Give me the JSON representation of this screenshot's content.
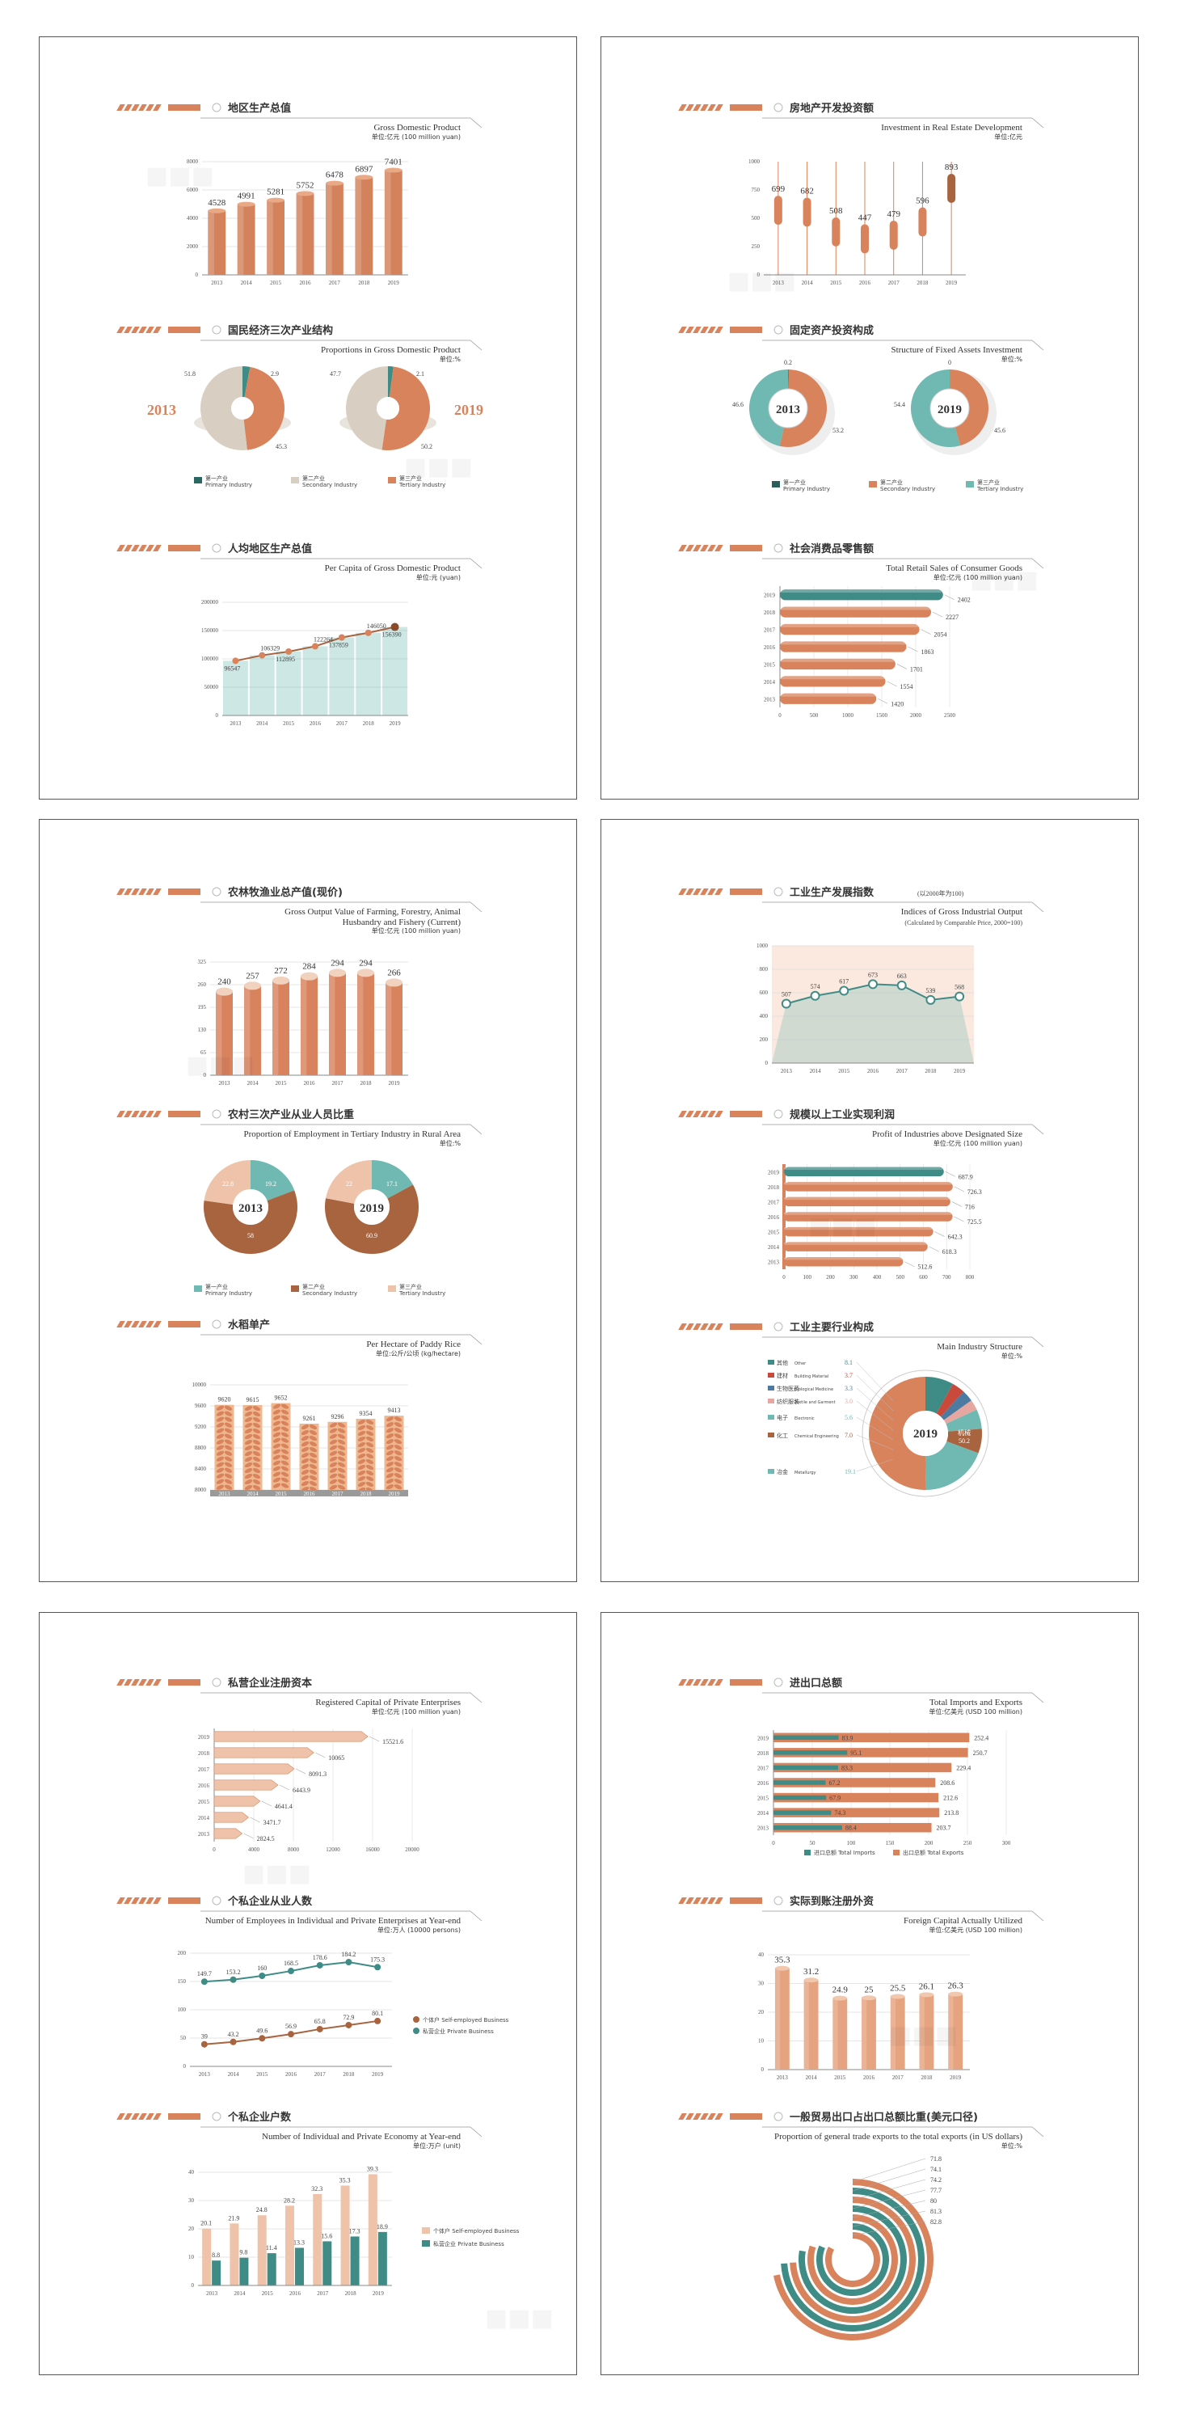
{
  "colors": {
    "accent": "#d9835c",
    "accent_light": "#eec3a9",
    "teal": "#3f8b86",
    "teal_light": "#6fb9b2",
    "dark_teal": "#2a6763",
    "beige": "#d8cfc2",
    "brown": "#a8633f"
  },
  "charts": [
    {
      "key": "gdp",
      "title_cn": "地区生产总值",
      "title_en": "Gross Domestic Product",
      "unit": "单位:亿元 (100 million yuan)",
      "chart_data": {
        "type": "bar",
        "categories": [
          "2013",
          "2014",
          "2015",
          "2016",
          "2017",
          "2018",
          "2019"
        ],
        "values": [
          4528,
          4991,
          5281,
          5752,
          6478,
          6897,
          7401
        ],
        "ylim": [
          0,
          8000
        ],
        "yticks": [
          "0",
          "2000",
          "4000",
          "6000",
          "8000"
        ]
      }
    },
    {
      "key": "realestate",
      "title_cn": "房地产开发投资额",
      "title_en": "Investment in Real Estate Development",
      "unit": "单位:亿元",
      "chart_data": {
        "type": "bar",
        "categories": [
          "2013",
          "2014",
          "2015",
          "2016",
          "2017",
          "2018",
          "2019"
        ],
        "values": [
          699,
          682,
          508,
          447,
          479,
          596,
          893
        ],
        "ylim": [
          0,
          1000
        ],
        "yticks": [
          "0",
          "250",
          "500",
          "750",
          "1000"
        ]
      }
    },
    {
      "key": "gdpstructure",
      "title_cn": "国民经济三次产业结构",
      "title_en": "Proportions in Gross Domestic Product",
      "unit": "单位:%",
      "chart_data": {
        "type": "pie",
        "charts": [
          {
            "year": "2013",
            "values": [
              2.9,
              45.3,
              51.8
            ]
          },
          {
            "year": "2019",
            "values": [
              2.1,
              50.2,
              47.7
            ]
          }
        ],
        "legend": [
          {
            "cn": "第一产业",
            "en": "Primary Industry"
          },
          {
            "cn": "第二产业",
            "en": "Secondary Industry"
          },
          {
            "cn": "第三产业",
            "en": "Tertiary Industry"
          }
        ]
      }
    },
    {
      "key": "fixedassets",
      "title_cn": "固定资产投资构成",
      "title_en": "Structure of Fixed Assets Investment",
      "unit": "单位:%",
      "chart_data": {
        "type": "pie",
        "charts": [
          {
            "year": "2013",
            "values": [
              0.2,
              53.2,
              46.6
            ]
          },
          {
            "year": "2019",
            "values": [
              0.0,
              45.6,
              54.4
            ]
          }
        ],
        "legend": [
          {
            "cn": "第一产业",
            "en": "Primary Industry"
          },
          {
            "cn": "第二产业",
            "en": "Secondary Industry"
          },
          {
            "cn": "第三产业",
            "en": "Tertiary Industry"
          }
        ]
      }
    },
    {
      "key": "percapita",
      "title_cn": "人均地区生产总值",
      "title_en": "Per Capita of Gross Domestic Product",
      "unit": "单位:元 (yuan)",
      "chart_data": {
        "type": "line",
        "categories": [
          "2013",
          "2014",
          "2015",
          "2016",
          "2017",
          "2018",
          "2019"
        ],
        "values": [
          96547,
          106329,
          112895,
          122264,
          137859,
          146050,
          156390
        ],
        "ylim": [
          0,
          200000
        ],
        "yticks": [
          "0",
          "50000",
          "100000",
          "150000",
          "200000"
        ]
      }
    },
    {
      "key": "retail",
      "title_cn": "社会消费品零售额",
      "title_en": "Total Retail Sales of Consumer Goods",
      "unit": "单位:亿元 (100 million yuan)",
      "chart_data": {
        "type": "bar",
        "categories": [
          "2019",
          "2018",
          "2017",
          "2016",
          "2015",
          "2014",
          "2013"
        ],
        "values": [
          2402,
          2227,
          2054,
          1863,
          1701,
          1554,
          1420
        ],
        "xlim": [
          0,
          2500
        ],
        "xticks": [
          "0",
          "500",
          "1000",
          "1500",
          "2000",
          "2500"
        ]
      }
    },
    {
      "key": "farming",
      "title_cn": "农林牧渔业总产值(现价)",
      "title_en": "Gross Output Value of Farming, Forestry, Animal",
      "title_en2": "Husbandry and Fishery (Current)",
      "unit": "单位:亿元 (100 million yuan)",
      "chart_data": {
        "type": "bar",
        "categories": [
          "2013",
          "2014",
          "2015",
          "2016",
          "2017",
          "2018",
          "2019"
        ],
        "values": [
          240,
          257,
          272,
          284,
          294,
          294,
          266
        ],
        "ylim": [
          0,
          325
        ],
        "yticks": [
          "0",
          "65",
          "130",
          "195",
          "260",
          "325"
        ]
      }
    },
    {
      "key": "industrial",
      "title_cn": "工业生产发展指数",
      "title_cn_note": "(以2000年为100)",
      "title_en": "Indices of Gross Industrial Output",
      "title_en2": "(Calculated by Comparable Price, 2000=100)",
      "chart_data": {
        "type": "line",
        "categories": [
          "2013",
          "2014",
          "2015",
          "2016",
          "2017",
          "2018",
          "2019"
        ],
        "values": [
          507,
          574,
          617,
          673,
          663,
          539,
          568
        ],
        "ylim": [
          0,
          1000
        ],
        "yticks": [
          "0",
          "200",
          "400",
          "600",
          "800",
          "1000"
        ]
      }
    },
    {
      "key": "ruralemp",
      "title_cn": "农村三次产业从业人员比重",
      "title_en": "Proportion of Employment in Tertiary Industry in Rural Area",
      "unit": "单位:%",
      "chart_data": {
        "type": "pie",
        "charts": [
          {
            "year": "2013",
            "values": [
              19.2,
              58.0,
              22.8
            ]
          },
          {
            "year": "2019",
            "values": [
              17.1,
              60.9,
              22.0
            ]
          }
        ],
        "legend": [
          {
            "cn": "第一产业",
            "en": "Primary Industry"
          },
          {
            "cn": "第二产业",
            "en": "Secondary Industry"
          },
          {
            "cn": "第三产业",
            "en": "Tertiary Industry"
          }
        ]
      }
    },
    {
      "key": "profit",
      "title_cn": "规模以上工业实现利润",
      "title_en": "Profit of Industries above Designated Size",
      "unit": "单位:亿元 (100 million yuan)",
      "chart_data": {
        "type": "bar",
        "categories": [
          "2019",
          "2018",
          "2017",
          "2016",
          "2015",
          "2014",
          "2013"
        ],
        "values": [
          687.9,
          726.3,
          716.0,
          725.5,
          642.3,
          618.3,
          512.6
        ],
        "xlim": [
          0,
          800
        ],
        "xticks": [
          "0",
          "100",
          "200",
          "300",
          "400",
          "500",
          "600",
          "700",
          "800"
        ]
      }
    },
    {
      "key": "rice",
      "title_cn": "水稻单产",
      "title_en": "Per Hectare of Paddy Rice",
      "unit": "单位:公斤/公顷 (kg/hectare)",
      "chart_data": {
        "type": "bar",
        "categories": [
          "2013",
          "2014",
          "2015",
          "2016",
          "2017",
          "2018",
          "2019"
        ],
        "values": [
          9620,
          9615,
          9652,
          9261,
          9296,
          9354,
          9413
        ],
        "ylim": [
          8000,
          10000
        ],
        "yticks": [
          "8000",
          "8400",
          "8800",
          "9200",
          "9600",
          "10000"
        ]
      }
    },
    {
      "key": "industrystructure",
      "title_cn": "工业主要行业构成",
      "title_en": "Main Industry Structure",
      "unit": "单位:%",
      "chart_data": {
        "type": "pie",
        "year": "2019",
        "center_label": "机械",
        "labels": [
          {
            "cn": "其他",
            "en": "Other",
            "value": "8.1"
          },
          {
            "cn": "建材",
            "en": "Building Material",
            "value": "3.7"
          },
          {
            "cn": "生物医药",
            "en": "Biological Medicine",
            "value": "3.3"
          },
          {
            "cn": "纺织服装",
            "en": "Textile and Garment",
            "value": "3.0"
          },
          {
            "cn": "电子",
            "en": "Electronic",
            "value": "5.6"
          },
          {
            "cn": "化工",
            "en": "Chemical Engineering",
            "value": "7.0"
          },
          {
            "cn": "冶金",
            "en": "Metallurgy",
            "value": "19.1"
          },
          {
            "cn": "机械",
            "en": "Machinery",
            "value": "50.2"
          }
        ],
        "values": [
          8.1,
          3.7,
          3.3,
          3.0,
          5.6,
          7.0,
          19.1,
          50.2
        ]
      }
    },
    {
      "key": "privatecap",
      "title_cn": "私营企业注册资本",
      "title_en": "Registered Capital of Private Enterprises",
      "unit": "单位:亿元 (100 million yuan)",
      "chart_data": {
        "type": "bar",
        "categories": [
          "2019",
          "2018",
          "2017",
          "2016",
          "2015",
          "2014",
          "2013"
        ],
        "values": [
          15521.6,
          10065.0,
          8091.3,
          6443.9,
          4641.4,
          3471.7,
          2824.5
        ],
        "xlim": [
          0,
          20000
        ],
        "xticks": [
          "0",
          "4000",
          "8000",
          "12000",
          "16000",
          "20000"
        ]
      }
    },
    {
      "key": "trade",
      "title_cn": "进出口总额",
      "title_en": "Total Imports and Exports",
      "unit": "单位:亿美元 (USD 100 million)",
      "chart_data": {
        "type": "bar",
        "categories": [
          "2019",
          "2018",
          "2017",
          "2016",
          "2015",
          "2014",
          "2013"
        ],
        "series": [
          {
            "name": "进口总额 Total Imports",
            "values": [
              83.9,
              95.1,
              83.3,
              67.2,
              67.9,
              74.3,
              88.4
            ]
          },
          {
            "name": "出口总额 Total Exports",
            "values": [
              252.4,
              250.7,
              229.4,
              208.6,
              212.6,
              213.8,
              203.7
            ]
          }
        ],
        "xlim": [
          0,
          300
        ],
        "xticks": [
          "0",
          "50",
          "100",
          "150",
          "200",
          "250",
          "300"
        ]
      }
    },
    {
      "key": "employees",
      "title_cn": "个私企业从业人数",
      "title_en": "Number of Employees in Individual and Private Enterprises at Year-end",
      "unit": "单位:万人 (10000 persons)",
      "chart_data": {
        "type": "line",
        "categories": [
          "2013",
          "2014",
          "2015",
          "2016",
          "2017",
          "2018",
          "2019"
        ],
        "series": [
          {
            "name": "个体户 Self-employed Business",
            "values": [
              39.0,
              43.2,
              49.6,
              56.9,
              65.8,
              72.9,
              80.1
            ]
          },
          {
            "name": "私营企业 Private Business",
            "values": [
              149.7,
              153.2,
              160.0,
              168.5,
              178.6,
              184.2,
              175.3
            ]
          }
        ],
        "ylim": [
          0,
          200
        ],
        "yticks": [
          "0",
          "50",
          "100",
          "150",
          "200"
        ]
      }
    },
    {
      "key": "foreigncap",
      "title_cn": "实际到账注册外资",
      "title_en": "Foreign Capital Actually Utilized",
      "unit": "单位:亿美元 (USD 100 million)",
      "chart_data": {
        "type": "bar",
        "categories": [
          "2013",
          "2014",
          "2015",
          "2016",
          "2017",
          "2018",
          "2019"
        ],
        "values": [
          35.3,
          31.2,
          24.9,
          25.0,
          25.5,
          26.1,
          26.3
        ],
        "ylim": [
          0,
          40
        ],
        "yticks": [
          "0",
          "10",
          "20",
          "30",
          "40"
        ]
      }
    },
    {
      "key": "households",
      "title_cn": "个私企业户数",
      "title_en": "Number of Individual and Private Economy at Year-end",
      "unit": "单位:万户 (unit)",
      "chart_data": {
        "type": "bar",
        "categories": [
          "2013",
          "2014",
          "2015",
          "2016",
          "2017",
          "2018",
          "2019"
        ],
        "series": [
          {
            "name": "个体户 Self-employed Business",
            "values": [
              20.1,
              21.9,
              24.8,
              28.2,
              32.3,
              35.3,
              39.3
            ]
          },
          {
            "name": "私营企业 Private Business",
            "values": [
              8.8,
              9.8,
              11.4,
              13.3,
              15.6,
              17.3,
              18.9
            ]
          }
        ],
        "ylim": [
          0,
          40
        ],
        "yticks": [
          "0",
          "10",
          "20",
          "30",
          "40"
        ]
      }
    },
    {
      "key": "generaltrade",
      "title_cn": "一般贸易出口占出口总额比重(美元口径)",
      "title_en": "Proportion of general trade exports to the total exports (in US dollars)",
      "unit": "单位:%",
      "chart_data": {
        "type": "pie",
        "values": [
          71.8,
          74.1,
          74.2,
          77.7,
          80.0,
          81.3,
          82.8
        ]
      }
    }
  ]
}
